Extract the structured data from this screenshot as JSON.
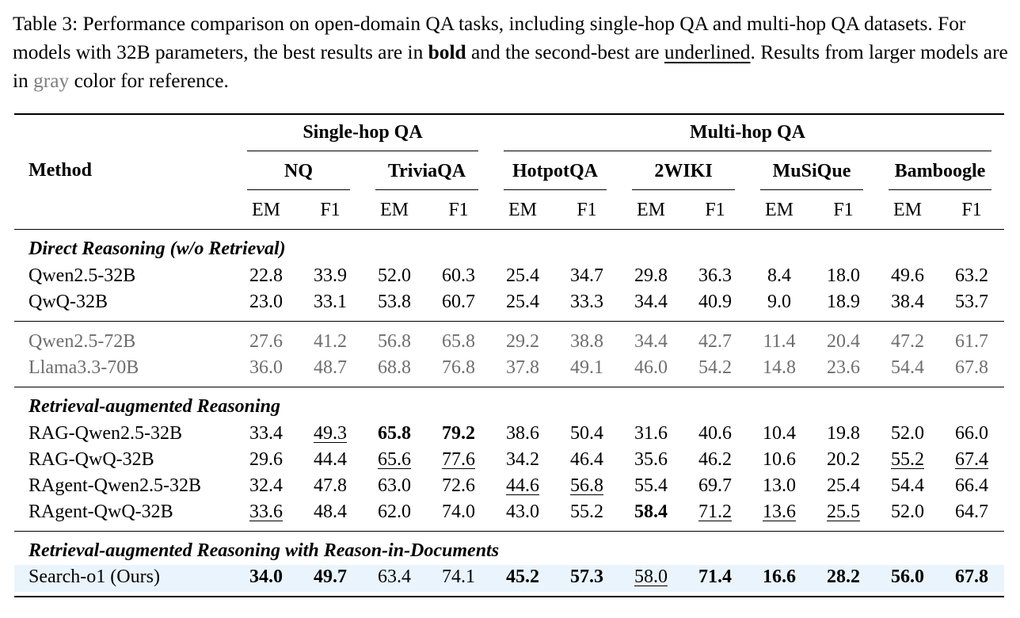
{
  "caption": {
    "p1": "Table 3: Performance comparison on open-domain QA tasks, including single-hop QA and multi-hop QA datasets. For models with 32B parameters, the best results are in ",
    "bold_word": "bold",
    "p2": " and the second-best are ",
    "underlined_word": "underlined",
    "p3": ". Results from larger models are in ",
    "gray_word": "gray",
    "p4": " color for reference."
  },
  "header": {
    "method": "Method",
    "group1": "Single-hop QA",
    "group2": "Multi-hop QA",
    "datasets": [
      "NQ",
      "TriviaQA",
      "HotpotQA",
      "2WIKI",
      "MuSiQue",
      "Bamboogle"
    ],
    "metrics": [
      "EM",
      "F1",
      "EM",
      "F1",
      "EM",
      "F1",
      "EM",
      "F1",
      "EM",
      "F1",
      "EM",
      "F1"
    ]
  },
  "sections": {
    "direct": "Direct Reasoning (w/o Retrieval)",
    "rag": "Retrieval-augmented Reasoning",
    "rid": "Retrieval-augmented Reasoning with Reason-in-Documents"
  },
  "rows": [
    {
      "method": "Qwen2.5-32B",
      "values": [
        "22.8",
        "33.9",
        "52.0",
        "60.3",
        "25.4",
        "34.7",
        "29.8",
        "36.3",
        "8.4",
        "18.0",
        "49.6",
        "63.2"
      ]
    },
    {
      "method": "QwQ-32B",
      "values": [
        "23.0",
        "33.1",
        "53.8",
        "60.7",
        "25.4",
        "33.3",
        "34.4",
        "40.9",
        "9.0",
        "18.9",
        "38.4",
        "53.7"
      ]
    },
    {
      "method": "Qwen2.5-72B",
      "values": [
        "27.6",
        "41.2",
        "56.8",
        "65.8",
        "29.2",
        "38.8",
        "34.4",
        "42.7",
        "11.4",
        "20.4",
        "47.2",
        "61.7"
      ]
    },
    {
      "method": "Llama3.3-70B",
      "values": [
        "36.0",
        "48.7",
        "68.8",
        "76.8",
        "37.8",
        "49.1",
        "46.0",
        "54.2",
        "14.8",
        "23.6",
        "54.4",
        "67.8"
      ]
    },
    {
      "method": "RAG-Qwen2.5-32B",
      "values": [
        "33.4",
        "49.3",
        "65.8",
        "79.2",
        "38.6",
        "50.4",
        "31.6",
        "40.6",
        "10.4",
        "19.8",
        "52.0",
        "66.0"
      ]
    },
    {
      "method": "RAG-QwQ-32B",
      "values": [
        "29.6",
        "44.4",
        "65.6",
        "77.6",
        "34.2",
        "46.4",
        "35.6",
        "46.2",
        "10.6",
        "20.2",
        "55.2",
        "67.4"
      ]
    },
    {
      "method": "RAgent-Qwen2.5-32B",
      "values": [
        "32.4",
        "47.8",
        "63.0",
        "72.6",
        "44.6",
        "56.8",
        "55.4",
        "69.7",
        "13.0",
        "25.4",
        "54.4",
        "66.4"
      ]
    },
    {
      "method": "RAgent-QwQ-32B",
      "values": [
        "33.6",
        "48.4",
        "62.0",
        "74.0",
        "43.0",
        "55.2",
        "58.4",
        "71.2",
        "13.6",
        "25.5",
        "52.0",
        "64.7"
      ]
    },
    {
      "method": "Search-o1 (Ours)",
      "values": [
        "34.0",
        "49.7",
        "63.4",
        "74.1",
        "45.2",
        "57.3",
        "58.0",
        "71.4",
        "16.6",
        "28.2",
        "56.0",
        "67.8"
      ]
    }
  ],
  "styles": {
    "gray_rows": [
      2,
      3
    ],
    "bold": [
      [
        4,
        2
      ],
      [
        4,
        3
      ],
      [
        7,
        6
      ],
      [
        8,
        0
      ],
      [
        8,
        1
      ],
      [
        8,
        4
      ],
      [
        8,
        5
      ],
      [
        8,
        7
      ],
      [
        8,
        8
      ],
      [
        8,
        9
      ],
      [
        8,
        10
      ],
      [
        8,
        11
      ]
    ],
    "underline": [
      [
        4,
        1
      ],
      [
        5,
        2
      ],
      [
        5,
        3
      ],
      [
        5,
        10
      ],
      [
        5,
        11
      ],
      [
        6,
        4
      ],
      [
        6,
        5
      ],
      [
        7,
        0
      ],
      [
        7,
        7
      ],
      [
        7,
        8
      ],
      [
        7,
        9
      ],
      [
        8,
        6
      ]
    ]
  },
  "colors": {
    "highlight": "#eaf4fc",
    "gray_text": "#6e6e6e"
  }
}
